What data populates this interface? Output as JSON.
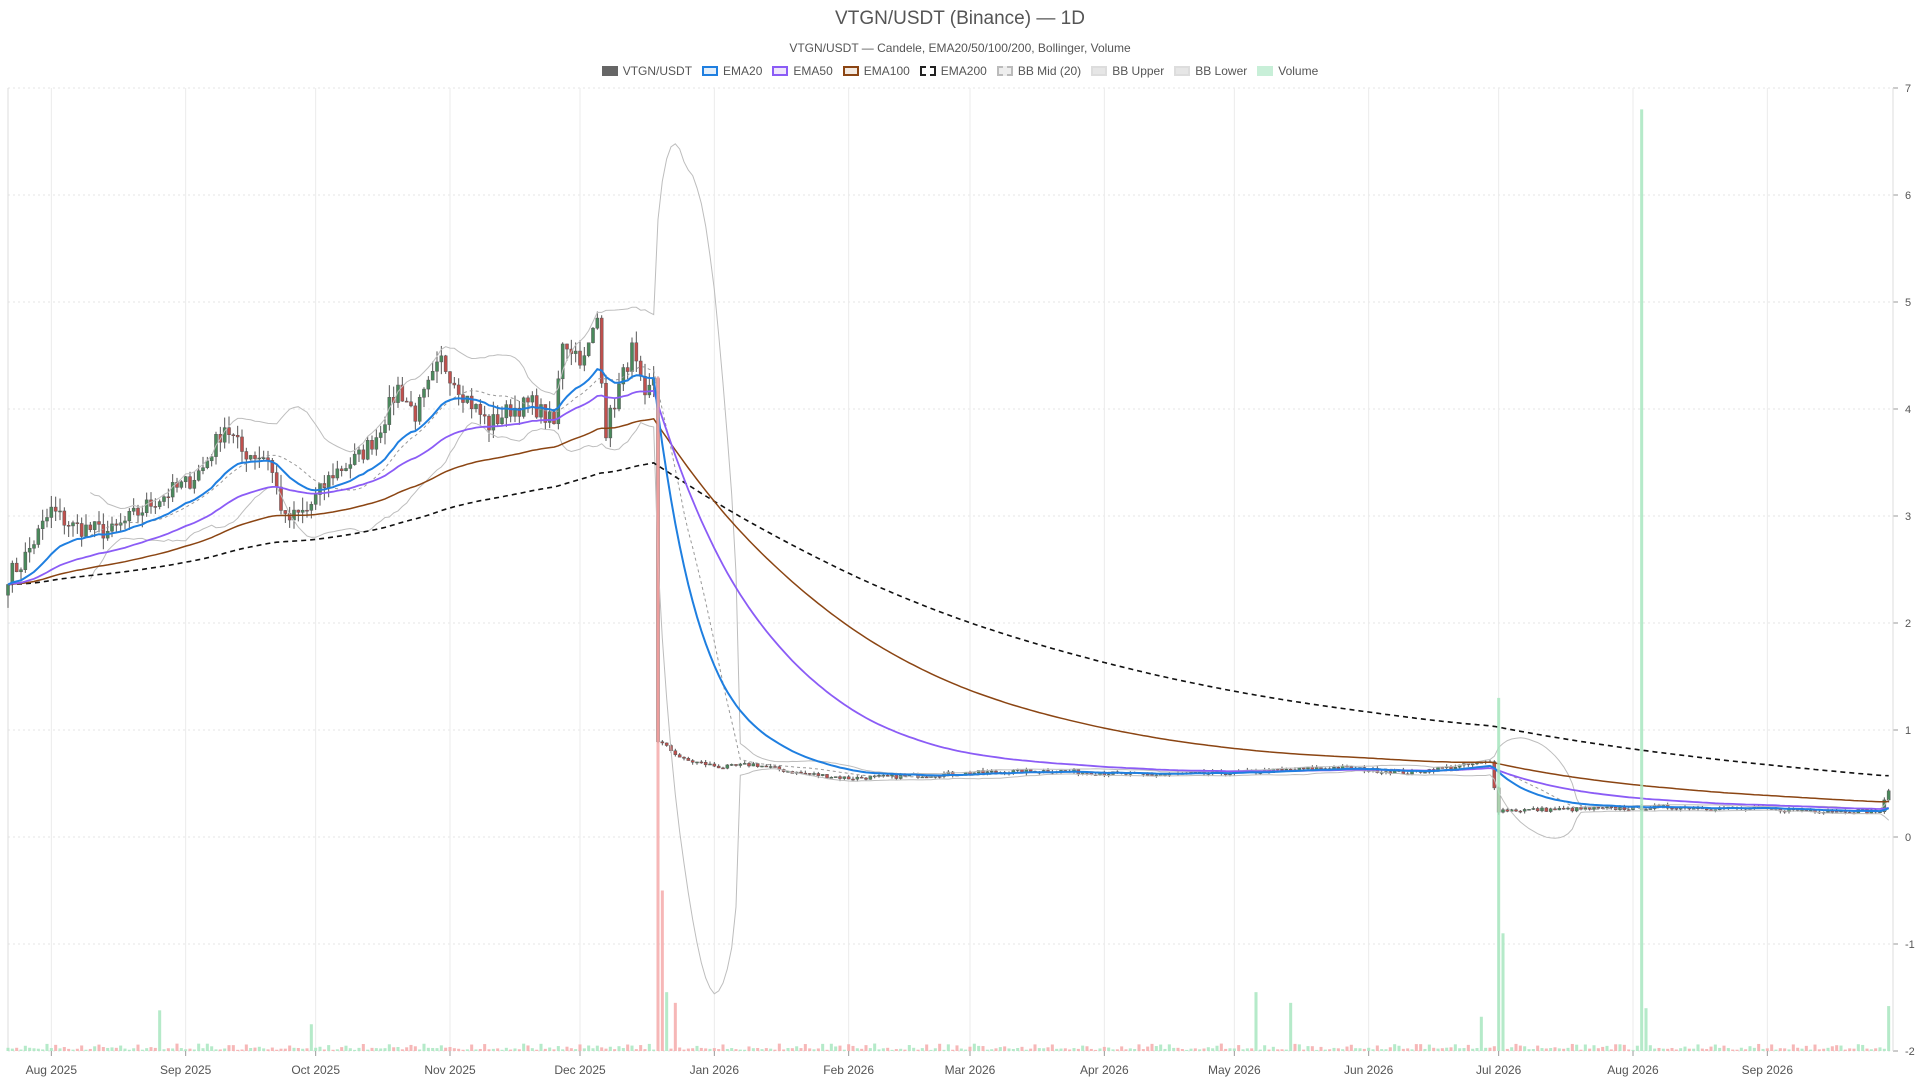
{
  "chart_data": {
    "type": "candlestick",
    "title": "VTGN/USDT (Binance) — 1D",
    "subtitle": "VTGN/USDT — Candele, EMA20/50/100/200, Bollinger, Volume",
    "legend_position": "top-center",
    "legend": [
      {
        "label": "VTGN/USDT",
        "icon": "candle-swatch",
        "fill": "#666666",
        "border": "#666666",
        "dash": false
      },
      {
        "label": "EMA20",
        "icon": "line-swatch",
        "fill": "#e3eefa",
        "border": "#1f7fe0",
        "dash": false
      },
      {
        "label": "EMA50",
        "icon": "line-swatch",
        "fill": "#efe6fb",
        "border": "#8b5cf6",
        "dash": false
      },
      {
        "label": "EMA100",
        "icon": "line-swatch",
        "fill": "#f3e9e0",
        "border": "#8b4513",
        "dash": false
      },
      {
        "label": "EMA200",
        "icon": "line-swatch",
        "fill": "#ffffff",
        "border": "#222222",
        "dash": true
      },
      {
        "label": "BB Mid (20)",
        "icon": "line-swatch",
        "fill": "#eeeeee",
        "border": "#bbbbbb",
        "dash": true
      },
      {
        "label": "BB Upper",
        "icon": "line-swatch",
        "fill": "#e6e6e6",
        "border": "#dddddd",
        "dash": false
      },
      {
        "label": "BB Lower",
        "icon": "line-swatch",
        "fill": "#e6e6e6",
        "border": "#dddddd",
        "dash": false
      },
      {
        "label": "Volume",
        "icon": "bar-swatch",
        "fill": "#c8efd8",
        "border": "#c8efd8",
        "dash": false
      }
    ],
    "y_axis": {
      "min": -2,
      "max": 7,
      "ticks": [
        "-2",
        "-1",
        "0",
        "1",
        "2",
        "3",
        "4",
        "5",
        "6",
        "7"
      ],
      "position": "right"
    },
    "x_axis": {
      "start": "2025-07-22",
      "end": "2026-09-30",
      "ticks": [
        {
          "date": "2025-08-01",
          "label": "Aug 2025"
        },
        {
          "date": "2025-09-01",
          "label": "Sep 2025"
        },
        {
          "date": "2025-10-01",
          "label": "Oct 2025"
        },
        {
          "date": "2025-11-01",
          "label": "Nov 2025"
        },
        {
          "date": "2025-12-01",
          "label": "Dec 2025"
        },
        {
          "date": "2026-01-01",
          "label": "Jan 2026"
        },
        {
          "date": "2026-02-01",
          "label": "Feb 2026"
        },
        {
          "date": "2026-03-01",
          "label": "Mar 2026"
        },
        {
          "date": "2026-04-01",
          "label": "Apr 2026"
        },
        {
          "date": "2026-05-01",
          "label": "May 2026"
        },
        {
          "date": "2026-06-01",
          "label": "Jun 2026"
        },
        {
          "date": "2026-07-01",
          "label": "Jul 2026"
        },
        {
          "date": "2026-08-01",
          "label": "Aug 2026"
        },
        {
          "date": "2026-09-01",
          "label": "Sep 2026"
        }
      ]
    },
    "grid": true,
    "colors": {
      "up": "#4a8a5c",
      "down": "#c0504d",
      "volume_up": "#a8e6c0",
      "volume_down": "#f4aaaa"
    },
    "price_anchors": [
      [
        "2025-07-22",
        2.45
      ],
      [
        "2025-07-25",
        2.55
      ],
      [
        "2025-08-01",
        3.05
      ],
      [
        "2025-08-06",
        2.9
      ],
      [
        "2025-08-15",
        2.85
      ],
      [
        "2025-08-25",
        3.15
      ],
      [
        "2025-09-01",
        3.3
      ],
      [
        "2025-09-05",
        3.45
      ],
      [
        "2025-09-10",
        3.85
      ],
      [
        "2025-09-14",
        3.6
      ],
      [
        "2025-09-20",
        3.55
      ],
      [
        "2025-09-24",
        2.95
      ],
      [
        "2025-09-29",
        3.05
      ],
      [
        "2025-10-05",
        3.4
      ],
      [
        "2025-10-11",
        3.55
      ],
      [
        "2025-10-15",
        3.75
      ],
      [
        "2025-10-20",
        4.2
      ],
      [
        "2025-10-24",
        3.95
      ],
      [
        "2025-10-30",
        4.45
      ],
      [
        "2025-11-04",
        4.15
      ],
      [
        "2025-11-10",
        3.85
      ],
      [
        "2025-11-15",
        4.0
      ],
      [
        "2025-11-20",
        4.05
      ],
      [
        "2025-11-25",
        3.85
      ],
      [
        "2025-11-27",
        4.65
      ],
      [
        "2025-12-02",
        4.45
      ],
      [
        "2025-12-05",
        4.85
      ],
      [
        "2025-12-07",
        3.8
      ],
      [
        "2025-12-10",
        4.2
      ],
      [
        "2025-12-13",
        4.55
      ],
      [
        "2025-12-16",
        4.05
      ],
      [
        "2025-12-18",
        4.3
      ],
      [
        "2025-12-19",
        0.9
      ],
      [
        "2025-12-25",
        0.72
      ],
      [
        "2026-01-03",
        0.65
      ],
      [
        "2026-01-10",
        0.68
      ],
      [
        "2026-01-20",
        0.6
      ],
      [
        "2026-02-01",
        0.55
      ],
      [
        "2026-02-15",
        0.57
      ],
      [
        "2026-03-01",
        0.6
      ],
      [
        "2026-03-20",
        0.62
      ],
      [
        "2026-04-10",
        0.58
      ],
      [
        "2026-05-01",
        0.6
      ],
      [
        "2026-05-25",
        0.65
      ],
      [
        "2026-06-10",
        0.6
      ],
      [
        "2026-06-25",
        0.68
      ],
      [
        "2026-06-29",
        0.7
      ],
      [
        "2026-07-01",
        0.25
      ],
      [
        "2026-07-20",
        0.26
      ],
      [
        "2026-08-10",
        0.28
      ],
      [
        "2026-09-10",
        0.25
      ],
      [
        "2026-09-27",
        0.24
      ],
      [
        "2026-09-29",
        0.42
      ]
    ],
    "volume_spikes": [
      [
        "2025-12-19",
        6.3,
        "down"
      ],
      [
        "2025-12-20",
        1.5,
        "down"
      ],
      [
        "2025-12-21",
        0.55,
        "up"
      ],
      [
        "2025-12-23",
        0.45,
        "down"
      ],
      [
        "2025-08-26",
        0.38,
        "up"
      ],
      [
        "2025-09-30",
        0.25,
        "up"
      ],
      [
        "2026-05-06",
        0.55,
        "up"
      ],
      [
        "2026-05-14",
        0.45,
        "up"
      ],
      [
        "2026-06-27",
        0.32,
        "up"
      ],
      [
        "2026-07-01",
        3.3,
        "up"
      ],
      [
        "2026-07-02",
        1.1,
        "up"
      ],
      [
        "2026-08-03",
        8.8,
        "up"
      ],
      [
        "2026-08-04",
        0.4,
        "up"
      ],
      [
        "2026-09-29",
        0.42,
        "up"
      ]
    ]
  }
}
